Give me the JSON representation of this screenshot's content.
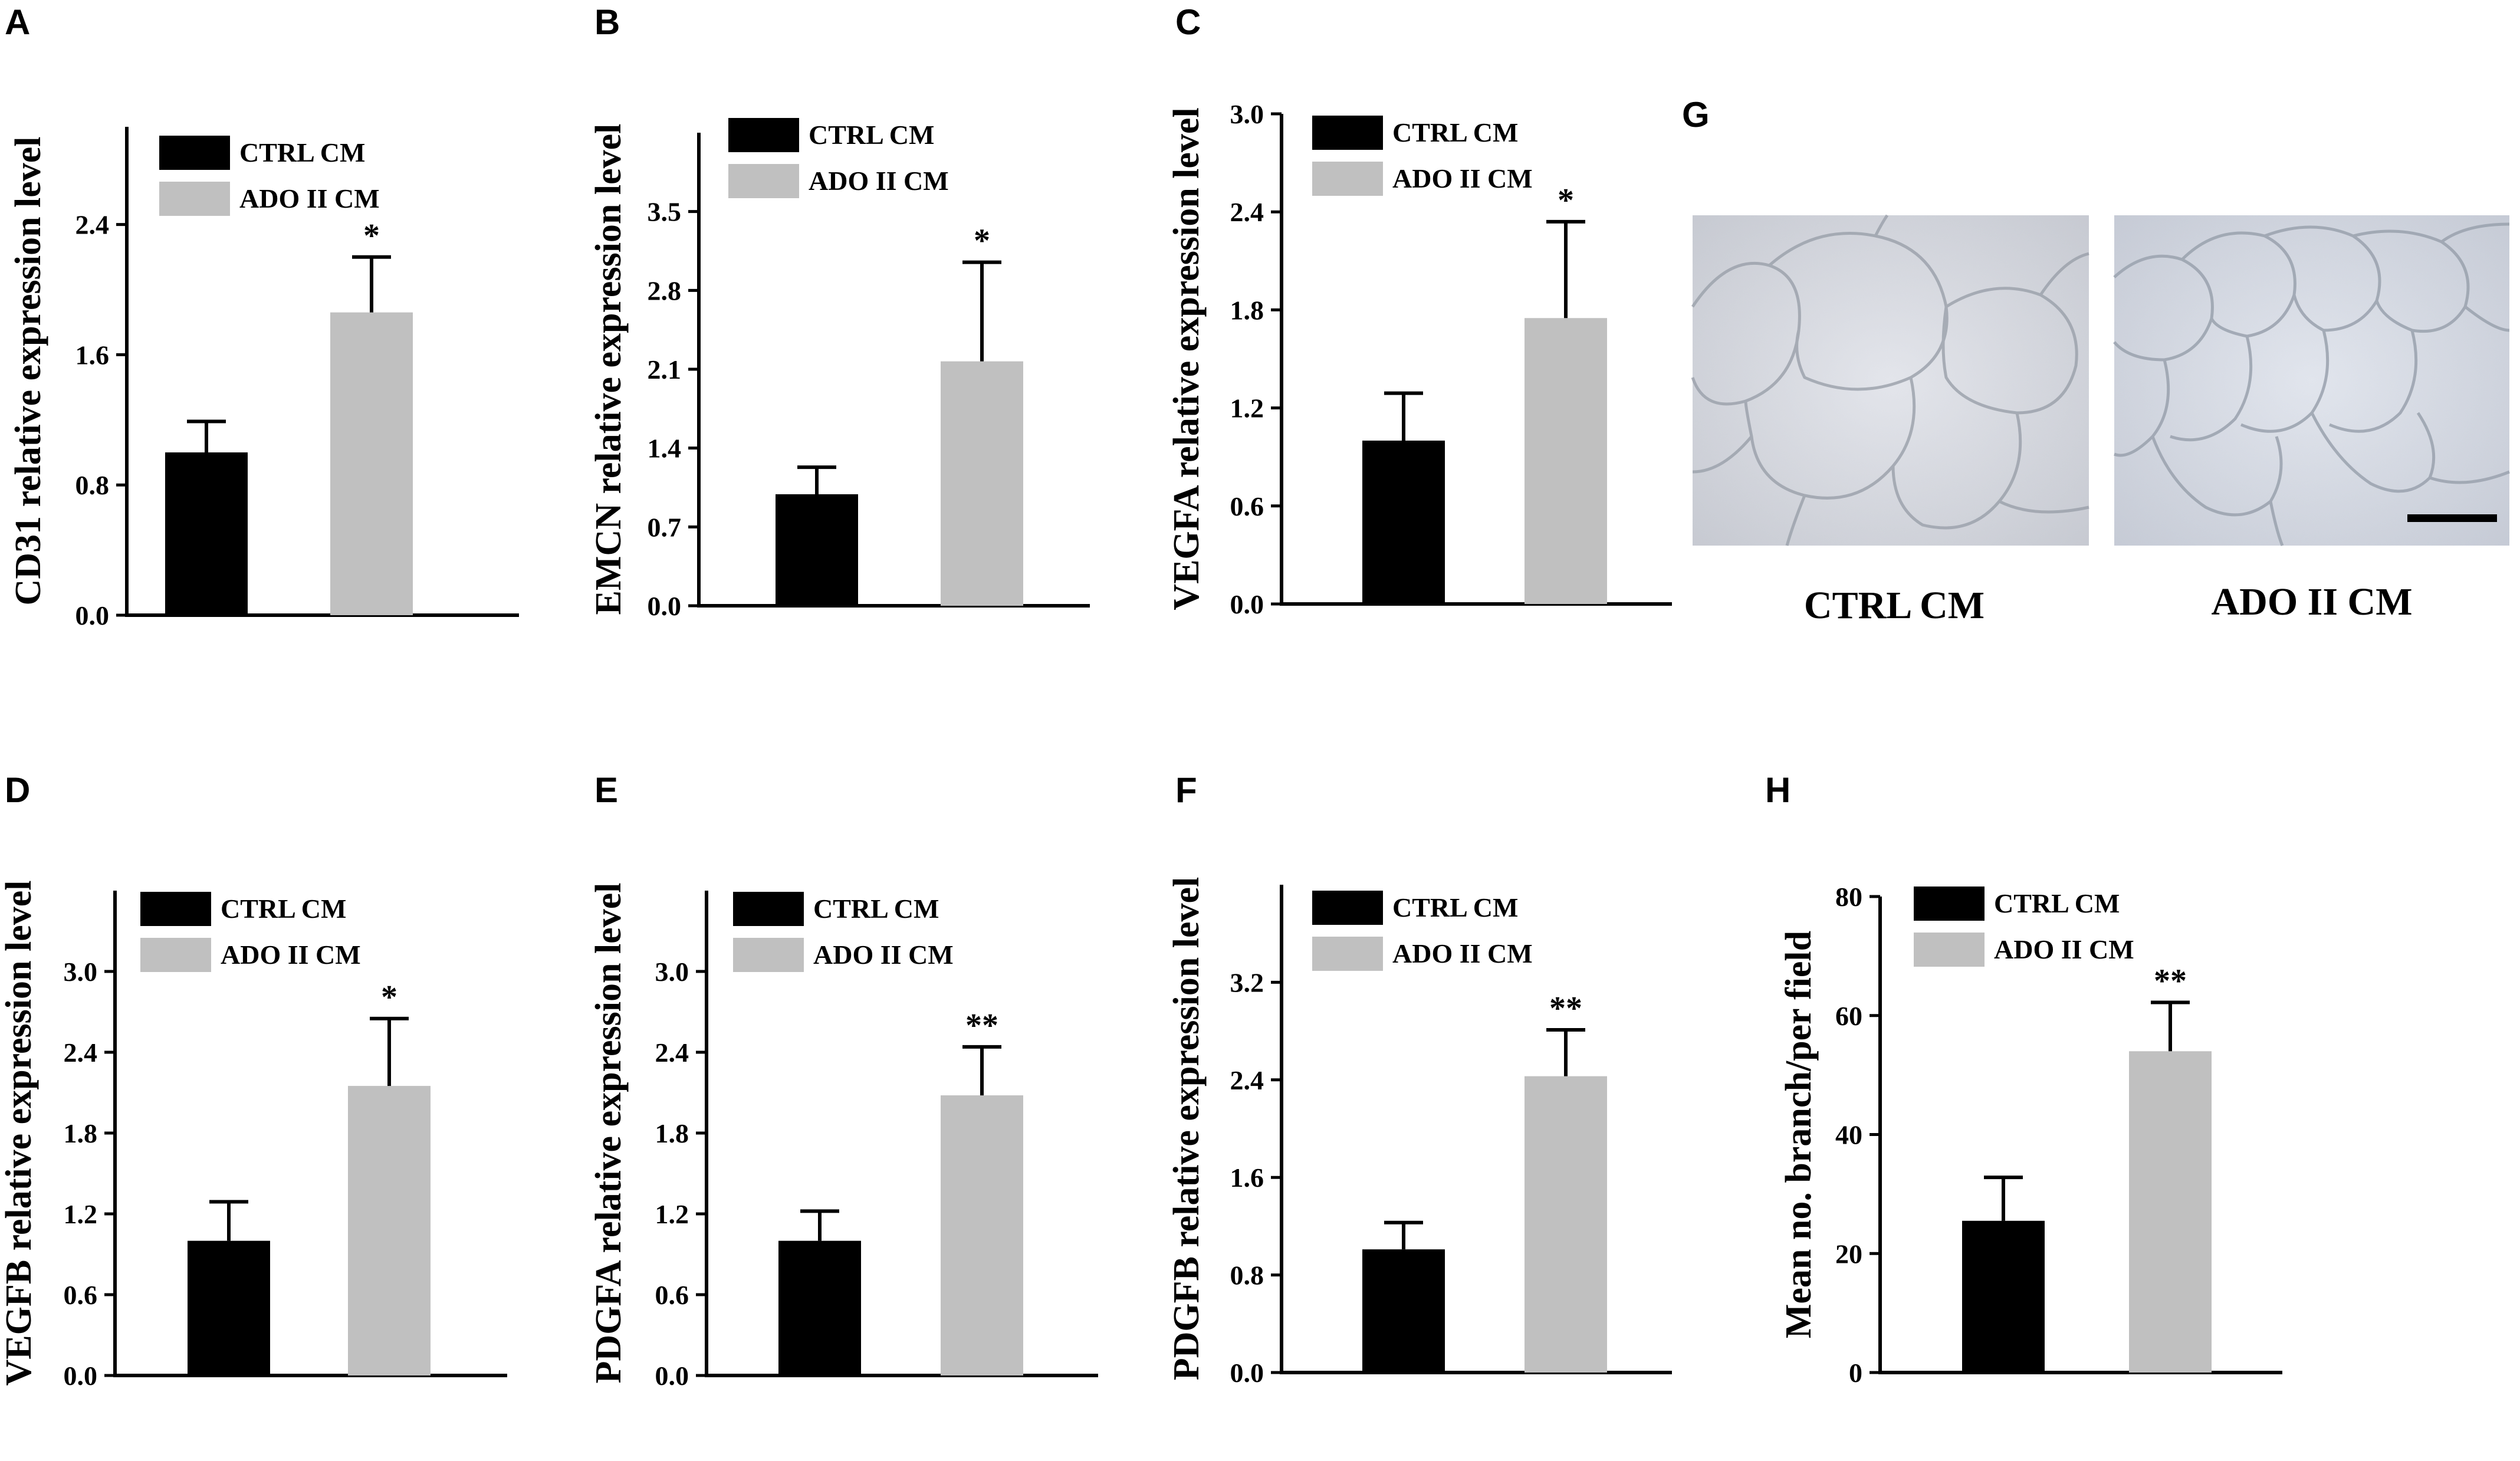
{
  "legend": {
    "ctrl": "CTRL CM",
    "ado": "ADO II CM"
  },
  "colors": {
    "ctrl": "#000000",
    "ado": "#c0c0c0"
  },
  "micrographs": {
    "label": "G",
    "ctrl_caption": "CTRL CM",
    "ado_caption": "ADO II CM",
    "scale_bar": true
  },
  "chart_data": [
    {
      "panel": "A",
      "type": "bar",
      "ylabel": "CD31 relative expression level",
      "ylim": [
        0,
        3.0
      ],
      "ticks": [
        0.0,
        0.8,
        1.6,
        2.4
      ],
      "decimals": 1,
      "categories": [
        "CTRL CM",
        "ADO II CM"
      ],
      "values": [
        1.0,
        1.86
      ],
      "errors": [
        0.19,
        0.34
      ],
      "significance": "*",
      "legend_position": "top-left"
    },
    {
      "panel": "B",
      "type": "bar",
      "ylabel": "EMCN relative expression level",
      "ylim": [
        0,
        4.2
      ],
      "ticks": [
        0.0,
        0.7,
        1.4,
        2.1,
        2.8,
        3.5
      ],
      "decimals": 1,
      "categories": [
        "CTRL CM",
        "ADO II CM"
      ],
      "values": [
        0.99,
        2.17
      ],
      "errors": [
        0.24,
        0.88
      ],
      "significance": "*",
      "legend_position": "top-left"
    },
    {
      "panel": "C",
      "type": "bar",
      "ylabel": "VEGFA relative expression level",
      "ylim": [
        0,
        3.0
      ],
      "ticks": [
        0.0,
        0.6,
        1.2,
        1.8,
        2.4,
        3.0
      ],
      "decimals": 1,
      "categories": [
        "CTRL CM",
        "ADO II CM"
      ],
      "values": [
        1.0,
        1.75
      ],
      "errors": [
        0.29,
        0.59
      ],
      "significance": "*",
      "legend_position": "top-left"
    },
    {
      "panel": "D",
      "type": "bar",
      "ylabel": "VEGFB relative expression level",
      "ylim": [
        0,
        3.6
      ],
      "ticks": [
        0.0,
        0.6,
        1.2,
        1.8,
        2.4,
        3.0
      ],
      "decimals": 1,
      "categories": [
        "CTRL CM",
        "ADO II CM"
      ],
      "values": [
        1.0,
        2.15
      ],
      "errors": [
        0.29,
        0.5
      ],
      "significance": "*",
      "legend_position": "top-left"
    },
    {
      "panel": "E",
      "type": "bar",
      "ylabel": "PDGFA relative expression level",
      "ylim": [
        0,
        3.6
      ],
      "ticks": [
        0.0,
        0.6,
        1.2,
        1.8,
        2.4,
        3.0
      ],
      "decimals": 1,
      "categories": [
        "CTRL CM",
        "ADO II CM"
      ],
      "values": [
        1.0,
        2.08
      ],
      "errors": [
        0.22,
        0.36
      ],
      "significance": "**",
      "legend_position": "top-left"
    },
    {
      "panel": "F",
      "type": "bar",
      "ylabel": "PDGFB relative expression level",
      "ylim": [
        0,
        4.0
      ],
      "ticks": [
        0.0,
        0.8,
        1.6,
        2.4,
        3.2
      ],
      "decimals": 1,
      "categories": [
        "CTRL CM",
        "ADO II CM"
      ],
      "values": [
        1.01,
        2.43
      ],
      "errors": [
        0.22,
        0.38
      ],
      "significance": "**",
      "legend_position": "top-left"
    },
    {
      "panel": "H",
      "type": "bar",
      "ylabel": "Mean no. branch/per field",
      "ylim": [
        0,
        80
      ],
      "ticks": [
        0,
        20,
        40,
        60,
        80
      ],
      "decimals": 0,
      "categories": [
        "CTRL CM",
        "ADO II CM"
      ],
      "values": [
        25.5,
        54
      ],
      "errors": [
        7.3,
        8.2
      ],
      "significance": "**",
      "legend_position": "top-left"
    }
  ]
}
